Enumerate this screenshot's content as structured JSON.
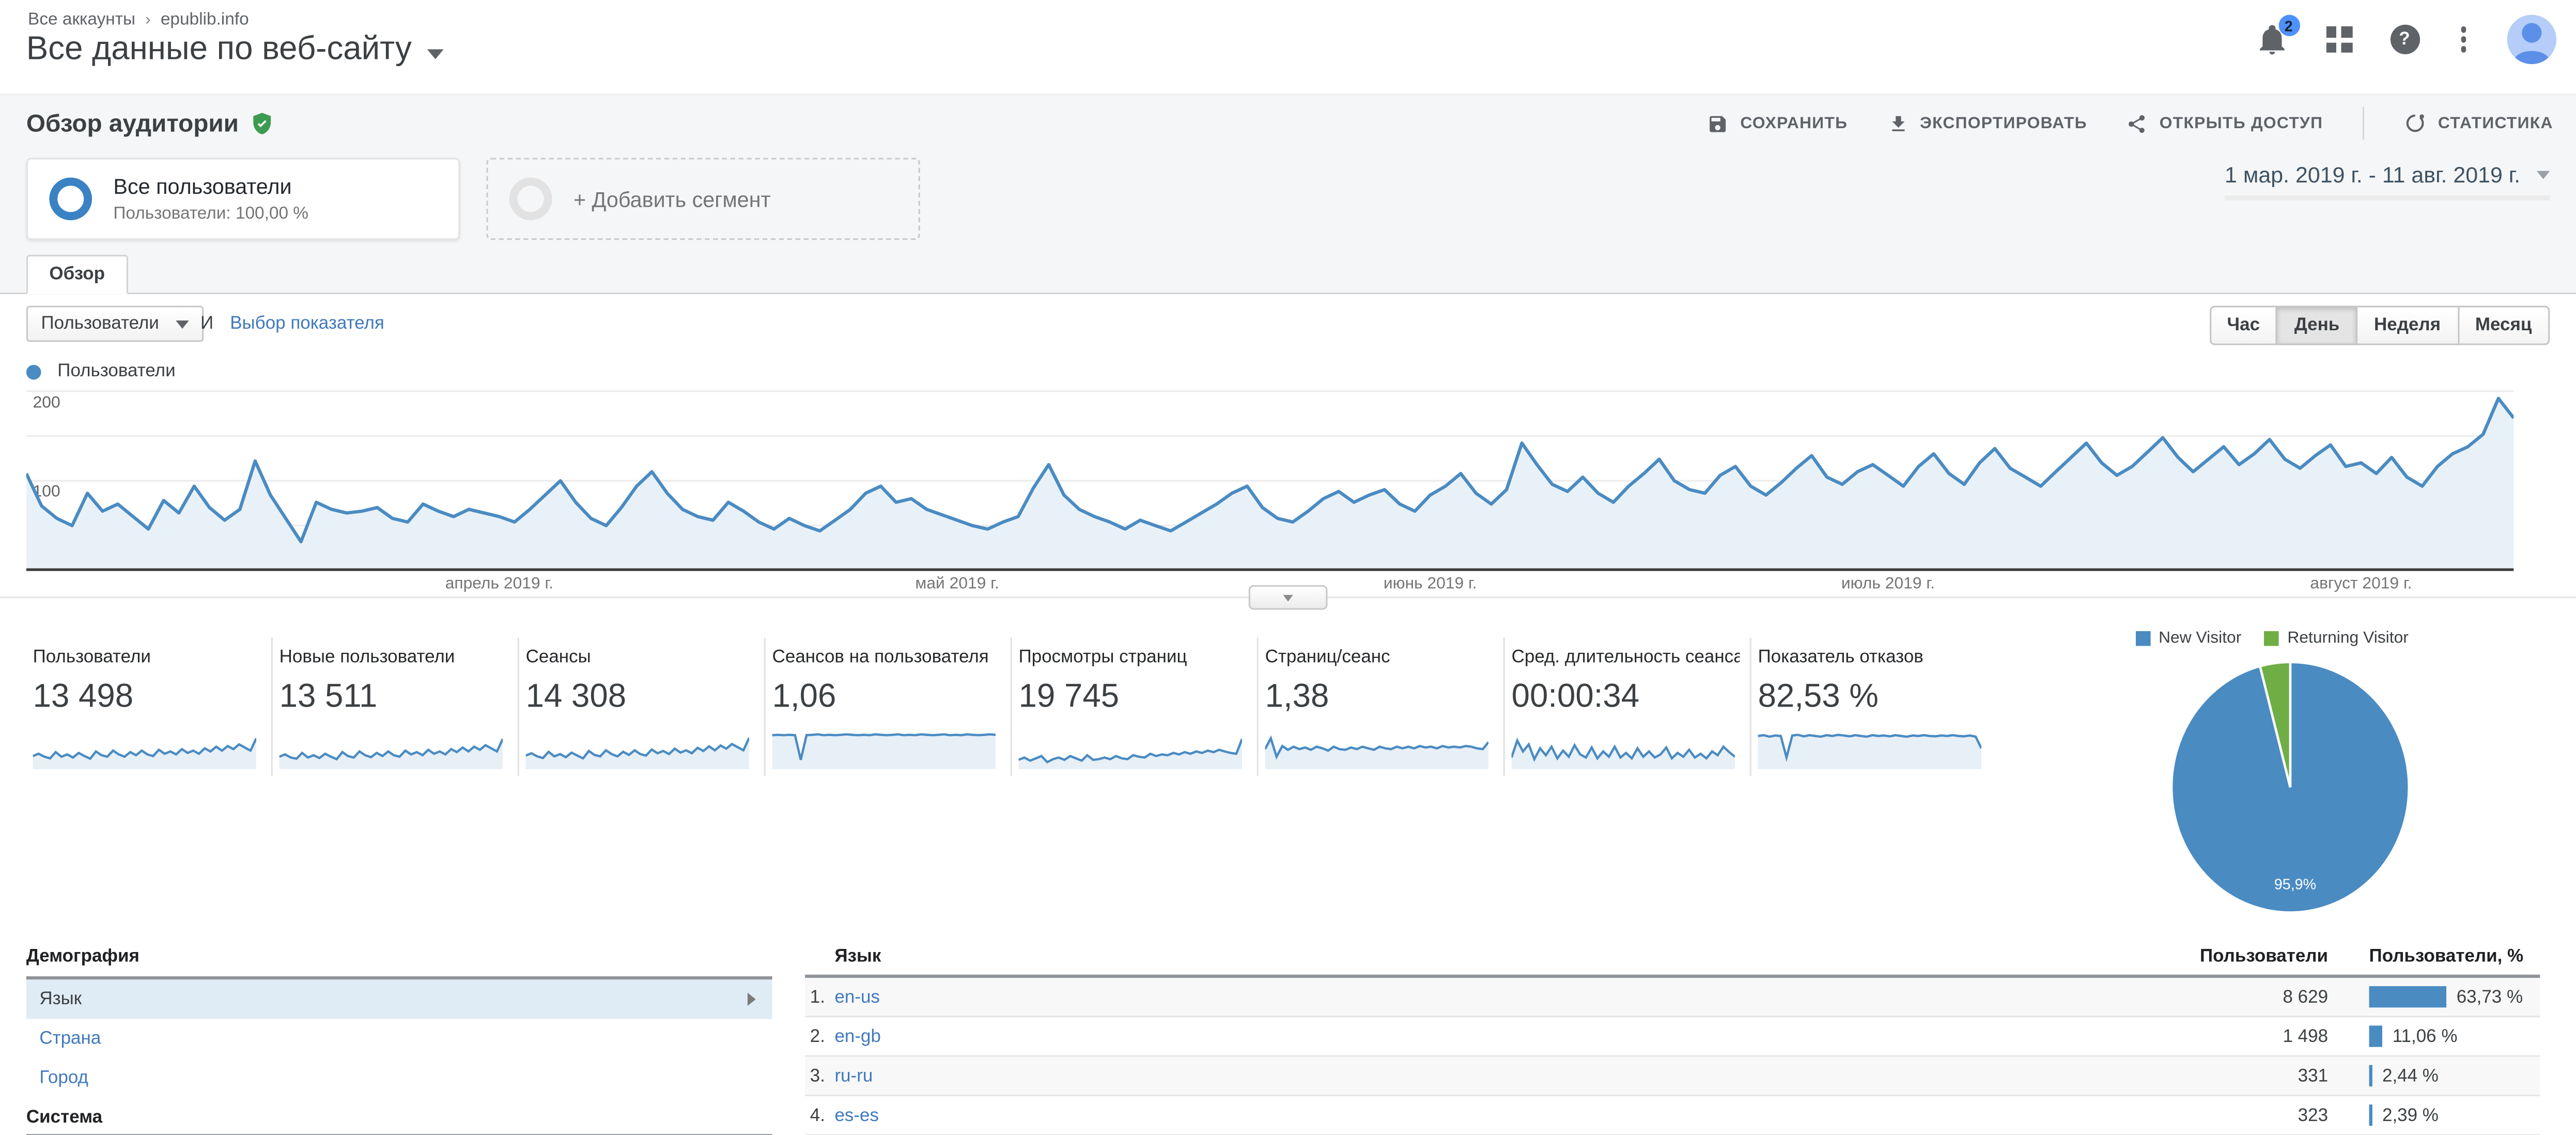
{
  "header": {
    "breadcrumb": {
      "account": "Все аккаунты",
      "separator": "›",
      "property": "epublib.info"
    },
    "title": "Все данные по веб-сайту",
    "notifications_badge": "2",
    "help_glyph": "?"
  },
  "toolbar": {
    "report_title": "Обзор аудитории",
    "buttons": [
      {
        "id": "save",
        "label": "СОХРАНИТЬ"
      },
      {
        "id": "export",
        "label": "ЭКСПОРТИРОВАТЬ"
      },
      {
        "id": "share",
        "label": "ОТКРЫТЬ ДОСТУП"
      },
      {
        "id": "insights",
        "label": "СТАТИСТИКА"
      }
    ]
  },
  "segments": {
    "all_users": {
      "title": "Все пользователи",
      "subtitle": "Пользователи: 100,00 %"
    },
    "add_segment": "+ Добавить сегмент",
    "date_range": "1 мар. 2019 г. - 11 авг. 2019 г."
  },
  "tabs": {
    "overview": "Обзор"
  },
  "controls": {
    "metric_selector": "Пользователи",
    "conjunction": "И",
    "secondary_metric_link": "Выбор показателя",
    "granularity": [
      {
        "label": "Час",
        "active": false
      },
      {
        "label": "День",
        "active": true
      },
      {
        "label": "Неделя",
        "active": false
      },
      {
        "label": "Месяц",
        "active": false
      }
    ]
  },
  "chart_data": [
    {
      "id": "users_over_time",
      "type": "line",
      "legend": [
        "Пользователи"
      ],
      "ylim": [
        0,
        200
      ],
      "ylabels": [
        "200",
        "100"
      ],
      "grid": true,
      "color": "#4a8bc2",
      "fill": "#e9f1f8",
      "x_month_ticks": [
        {
          "label": "апрель 2019 г.",
          "index": 31
        },
        {
          "label": "май 2019 г.",
          "index": 61
        },
        {
          "label": "июнь 2019 г.",
          "index": 92
        },
        {
          "label": "июль 2019 г.",
          "index": 122
        },
        {
          "label": "август 2019 г.",
          "index": 153
        }
      ],
      "x_range_days": 164,
      "values": [
        108,
        72,
        58,
        50,
        86,
        66,
        74,
        60,
        46,
        78,
        64,
        94,
        70,
        56,
        68,
        122,
        84,
        58,
        32,
        76,
        68,
        64,
        66,
        70,
        58,
        54,
        74,
        66,
        60,
        68,
        64,
        60,
        54,
        68,
        84,
        100,
        76,
        58,
        50,
        70,
        94,
        110,
        86,
        68,
        60,
        56,
        76,
        66,
        54,
        46,
        58,
        50,
        44,
        56,
        68,
        86,
        94,
        76,
        80,
        68,
        62,
        56,
        50,
        46,
        54,
        60,
        92,
        118,
        84,
        68,
        60,
        54,
        46,
        56,
        50,
        44,
        54,
        64,
        74,
        86,
        94,
        70,
        58,
        54,
        66,
        80,
        88,
        76,
        84,
        90,
        74,
        66,
        84,
        94,
        108,
        86,
        74,
        90,
        142,
        118,
        96,
        88,
        104,
        86,
        76,
        94,
        108,
        124,
        100,
        90,
        86,
        106,
        116,
        94,
        84,
        98,
        114,
        128,
        104,
        96,
        110,
        118,
        106,
        94,
        116,
        130,
        108,
        96,
        120,
        136,
        114,
        104,
        94,
        110,
        126,
        142,
        120,
        106,
        116,
        132,
        148,
        126,
        110,
        124,
        138,
        118,
        130,
        146,
        124,
        114,
        128,
        140,
        116,
        120,
        108,
        126,
        104,
        94,
        116,
        130,
        138,
        152,
        192,
        170
      ]
    },
    {
      "id": "visitor_type_pie",
      "type": "pie",
      "legend": [
        {
          "label": "New Visitor",
          "color": "#4a8bc2"
        },
        {
          "label": "Returning Visitor",
          "color": "#6fae44"
        }
      ],
      "slices": [
        {
          "label": "New Visitor",
          "value": 95.9,
          "display": "95,9%"
        },
        {
          "label": "Returning Visitor",
          "value": 4.1,
          "display": ""
        }
      ]
    },
    {
      "id": "language_table",
      "type": "table",
      "columns": [
        "Язык",
        "Пользователи",
        "Пользователи, %"
      ],
      "rows": [
        {
          "rank": "1.",
          "language": "en-us",
          "users": "8 629",
          "users_pct": "63,73 %",
          "pct_value": 63.73
        },
        {
          "rank": "2.",
          "language": "en-gb",
          "users": "1 498",
          "users_pct": "11,06 %",
          "pct_value": 11.06
        },
        {
          "rank": "3.",
          "language": "ru-ru",
          "users": "331",
          "users_pct": "2,44 %",
          "pct_value": 2.44
        },
        {
          "rank": "4.",
          "language": "es-es",
          "users": "323",
          "users_pct": "2,39 %",
          "pct_value": 2.39
        }
      ]
    }
  ],
  "metrics": [
    {
      "label": "Пользователи",
      "value": "13 498",
      "spark": [
        32,
        38,
        30,
        26,
        42,
        30,
        36,
        28,
        40,
        32,
        25,
        44,
        34,
        30,
        46,
        36,
        30,
        42,
        34,
        46,
        36,
        32,
        48,
        38,
        44,
        36,
        50,
        40,
        46,
        38,
        52,
        44,
        56,
        46,
        58,
        50,
        62,
        54,
        46,
        78
      ]
    },
    {
      "label": "Новые пользователи",
      "value": "13 511",
      "spark": [
        30,
        36,
        28,
        25,
        40,
        28,
        34,
        27,
        38,
        30,
        24,
        42,
        32,
        28,
        44,
        34,
        29,
        40,
        32,
        44,
        34,
        30,
        46,
        36,
        42,
        34,
        48,
        38,
        44,
        36,
        50,
        42,
        54,
        44,
        56,
        48,
        60,
        52,
        44,
        76
      ]
    },
    {
      "label": "Сеансы",
      "value": "14 308",
      "spark": [
        33,
        39,
        31,
        27,
        43,
        31,
        37,
        29,
        41,
        33,
        26,
        45,
        35,
        31,
        47,
        37,
        31,
        43,
        35,
        47,
        37,
        33,
        49,
        39,
        45,
        37,
        51,
        41,
        47,
        39,
        53,
        45,
        57,
        47,
        59,
        51,
        63,
        55,
        47,
        79
      ]
    },
    {
      "label": "Сеансов на пользователя",
      "value": "1,06",
      "spark": [
        86,
        87,
        86,
        87,
        86,
        22,
        86,
        87,
        88,
        86,
        87,
        86,
        87,
        88,
        87,
        86,
        87,
        86,
        88,
        87,
        86,
        87,
        88,
        86,
        87,
        86,
        88,
        87,
        86,
        87,
        88,
        86,
        87,
        86,
        88,
        87,
        86,
        87,
        88,
        87
      ]
    },
    {
      "label": "Просмотры страниц",
      "value": "19 745",
      "spark": [
        22,
        28,
        20,
        26,
        32,
        16,
        24,
        28,
        22,
        32,
        26,
        20,
        34,
        22,
        24,
        28,
        24,
        32,
        26,
        24,
        34,
        30,
        28,
        38,
        32,
        36,
        34,
        40,
        36,
        42,
        38,
        44,
        40,
        46,
        42,
        48,
        44,
        40,
        38,
        76
      ]
    },
    {
      "label": "Страниц/сеанс",
      "value": "1,38",
      "spark": [
        50,
        78,
        30,
        58,
        48,
        56,
        50,
        54,
        48,
        56,
        52,
        46,
        56,
        50,
        48,
        54,
        50,
        56,
        52,
        48,
        56,
        52,
        50,
        56,
        52,
        56,
        52,
        58,
        54,
        56,
        52,
        58,
        54,
        56,
        54,
        58,
        56,
        52,
        50,
        68
      ]
    },
    {
      "label": "Сред. длительность сеанса",
      "value": "00:00:34",
      "spark": [
        28,
        72,
        44,
        62,
        24,
        52,
        34,
        56,
        26,
        46,
        30,
        60,
        36,
        28,
        54,
        26,
        44,
        30,
        56,
        28,
        40,
        26,
        52,
        30,
        44,
        28,
        36,
        54,
        26,
        40,
        30,
        48,
        28,
        38,
        26,
        44,
        34,
        56,
        42,
        30
      ]
    },
    {
      "label": "Показатель отказов",
      "value": "82,53 %",
      "spark": [
        84,
        86,
        82,
        85,
        84,
        28,
        85,
        87,
        83,
        86,
        84,
        82,
        86,
        84,
        87,
        85,
        83,
        86,
        84,
        82,
        86,
        84,
        85,
        83,
        86,
        84,
        82,
        85,
        84,
        86,
        84,
        83,
        85,
        84,
        86,
        84,
        83,
        85,
        82,
        52
      ]
    }
  ],
  "sidebar": {
    "demography_header": "Демография",
    "items": [
      {
        "label": "Язык",
        "selected": true
      },
      {
        "label": "Страна",
        "selected": false
      },
      {
        "label": "Город",
        "selected": false
      }
    ],
    "system_header": "Система"
  }
}
